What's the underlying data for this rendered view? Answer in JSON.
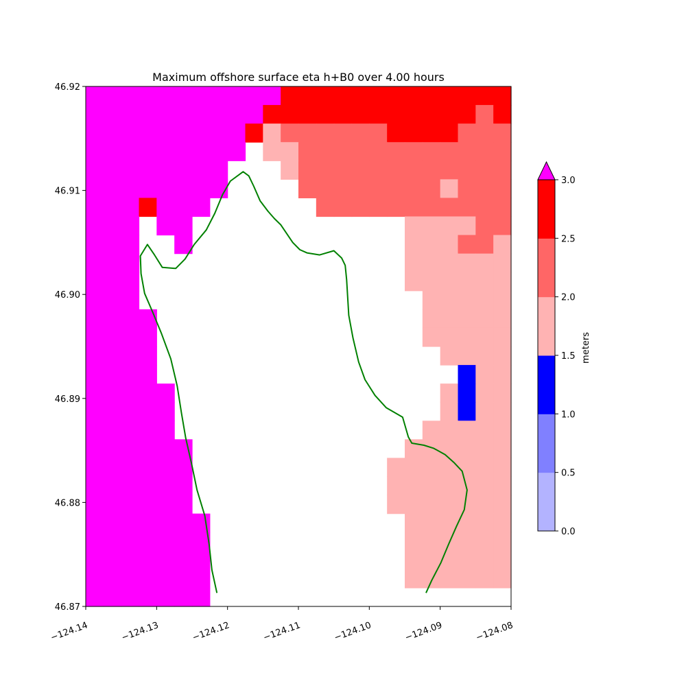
{
  "chart_data": {
    "type": "heatmap",
    "title": "Maximum offshore surface eta h+B0 over 4.00 hours",
    "xlabel": "",
    "ylabel": "",
    "xlim": [
      -124.14,
      -124.08
    ],
    "ylim": [
      46.87,
      46.92
    ],
    "x_ticks": [
      -124.14,
      -124.13,
      -124.12,
      -124.11,
      -124.1,
      -124.09,
      -124.08
    ],
    "x_tick_labels": [
      "−124.14",
      "−124.13",
      "−124.12",
      "−124.11",
      "−124.10",
      "−124.09",
      "−124.08"
    ],
    "y_ticks": [
      46.87,
      46.88,
      46.89,
      46.9,
      46.91,
      46.92
    ],
    "y_tick_labels": [
      "46.87",
      "46.88",
      "46.89",
      "46.90",
      "46.91",
      "46.92"
    ],
    "grid": false,
    "grid_cell_size": [
      0.0025,
      0.0025
    ],
    "levels_legend": "0=white(land/dry), 1=#b3b3ff, 2=#8080ff, 3=#0000ff, 4=#ffb3b3, 5=#ff6666, 6=#ff0000, 7=#ff00ff(>3.0)",
    "grid_rows_top_to_bottom": [
      "MMMMMMMMMMMRRRRRRRRRRRRR",
      "MMMMMMMMMMRRRRRRRRRRRRDR",
      "MMMMMMMMMRLDDDDDDRRRRDDD",
      "MMMMMMMMMWLLDDDDDDDDDDDD",
      "MMMMMMMMWWWLDDDDDDDDDDDD",
      "MMMMMMMMWWWWDDDDDDDDLDDD",
      "MMMRMMMWWWWWWDDDDDDDDDDD",
      "MMMWMMWWWWWWWWWWWWLLLLDD",
      "MMMWWMWWWWWWWWWWWWLLLDDL",
      "MMMWWWWWWWWWWWWWWWLLLLLL",
      "MMMWWWWWWWWWWWWWWWLLLLLL",
      "MMMWWWWWWWWWWWWWWWWLLLLL",
      "MMMMWWWWWWWWWWWWWWWLLLLL",
      "MMMMWWWWWWWWWWWWWWWLLLLL",
      "MMMMWWWWWWWWWWWWWWWWLLLL",
      "MMMMWWWWWWWWWWWWWWWWWBLL",
      "MMMMMWWWWWWWWWWWWWWWLBLL",
      "MMMMMWWWWWWWWWWWWWWWLBLL",
      "MMMMMWWWWWWWWWWWWWWLLLLL",
      "MMMMMMWWWWWWWWWWWWLLLLLL",
      "MMMMMMWWWWWWWWWWWLLLLLLL",
      "MMMMMMWWWWWWWWWWWLLLLLLL",
      "MMMMMMWWWWWWWWWWWLLLLLLL",
      "MMMMMMMWWWWWWWWWWWLLLLLL",
      "MMMMMMMWWWWWWWWWWWLLLLLL",
      "MMMMMMMWWWWWWWWWWWLLLLLL",
      "MMMMMMMWWWWWWWWWWWLLLLLL",
      "MMMMMMMWWWWWWWWWWWWWWWWW"
    ],
    "grid_legend_codes": {
      "W": "#ffffff",
      "L": "#ffb3b3",
      "D": "#ff6666",
      "R": "#ff0000",
      "M": "#ff00ff",
      "B": "#0000ff"
    },
    "coastline": {
      "color": "#008000",
      "points": [
        [
          -124.1215,
          46.8713
        ],
        [
          -124.1222,
          46.8735
        ],
        [
          -124.1226,
          46.876
        ],
        [
          -124.1232,
          46.8787
        ],
        [
          -124.1243,
          46.8812
        ],
        [
          -124.1251,
          46.8838
        ],
        [
          -124.1259,
          46.8862
        ],
        [
          -124.1265,
          46.8886
        ],
        [
          -124.1271,
          46.8912
        ],
        [
          -124.128,
          46.8938
        ],
        [
          -124.1293,
          46.8962
        ],
        [
          -124.1305,
          46.8982
        ],
        [
          -124.1317,
          46.9001
        ],
        [
          -124.1322,
          46.902
        ],
        [
          -124.1323,
          46.9037
        ],
        [
          -124.1313,
          46.9048
        ],
        [
          -124.1303,
          46.9038
        ],
        [
          -124.1292,
          46.9026
        ],
        [
          -124.1273,
          46.9025
        ],
        [
          -124.126,
          46.9034
        ],
        [
          -124.1247,
          46.9048
        ],
        [
          -124.123,
          46.9062
        ],
        [
          -124.1218,
          46.9078
        ],
        [
          -124.1207,
          46.9096
        ],
        [
          -124.1196,
          46.9109
        ],
        [
          -124.1178,
          46.9118
        ],
        [
          -124.117,
          46.9114
        ],
        [
          -124.1163,
          46.9104
        ],
        [
          -124.1154,
          46.909
        ],
        [
          -124.1143,
          46.908
        ],
        [
          -124.1134,
          46.9073
        ],
        [
          -124.1125,
          46.9067
        ],
        [
          -124.1116,
          46.9058
        ],
        [
          -124.1108,
          46.905
        ],
        [
          -124.1098,
          46.9043
        ],
        [
          -124.1088,
          46.904
        ],
        [
          -124.107,
          46.9038
        ],
        [
          -124.105,
          46.9042
        ],
        [
          -124.1039,
          46.9035
        ],
        [
          -124.1034,
          46.9028
        ],
        [
          -124.1032,
          46.9014
        ],
        [
          -124.103,
          46.8992
        ],
        [
          -124.1029,
          46.898
        ],
        [
          -124.1023,
          46.8958
        ],
        [
          -124.1015,
          46.8935
        ],
        [
          -124.1006,
          46.8918
        ],
        [
          -124.0992,
          46.8903
        ],
        [
          -124.0976,
          46.8891
        ],
        [
          -124.0953,
          46.8882
        ],
        [
          -124.0945,
          46.8863
        ],
        [
          -124.094,
          46.8857
        ],
        [
          -124.0923,
          46.8855
        ],
        [
          -124.0909,
          46.8852
        ],
        [
          -124.0893,
          46.8846
        ],
        [
          -124.088,
          46.8838
        ],
        [
          -124.0869,
          46.883
        ],
        [
          -124.0862,
          46.8812
        ],
        [
          -124.0866,
          46.8793
        ],
        [
          -124.0877,
          46.8777
        ],
        [
          -124.0888,
          46.876
        ],
        [
          -124.0899,
          46.8742
        ],
        [
          -124.0912,
          46.8725
        ],
        [
          -124.092,
          46.8713
        ]
      ]
    },
    "colorbar": {
      "label": "meters",
      "ticks": [
        0.0,
        0.5,
        1.0,
        1.5,
        2.0,
        2.5,
        3.0
      ],
      "tick_labels": [
        "0.0",
        "0.5",
        "1.0",
        "1.5",
        "2.0",
        "2.5",
        "3.0"
      ],
      "bin_colors": [
        "#b3b3ff",
        "#8080ff",
        "#0000ff",
        "#ffb3b3",
        "#ff6666",
        "#ff0000"
      ],
      "over_color": "#ff00ff",
      "extend": "max"
    }
  }
}
